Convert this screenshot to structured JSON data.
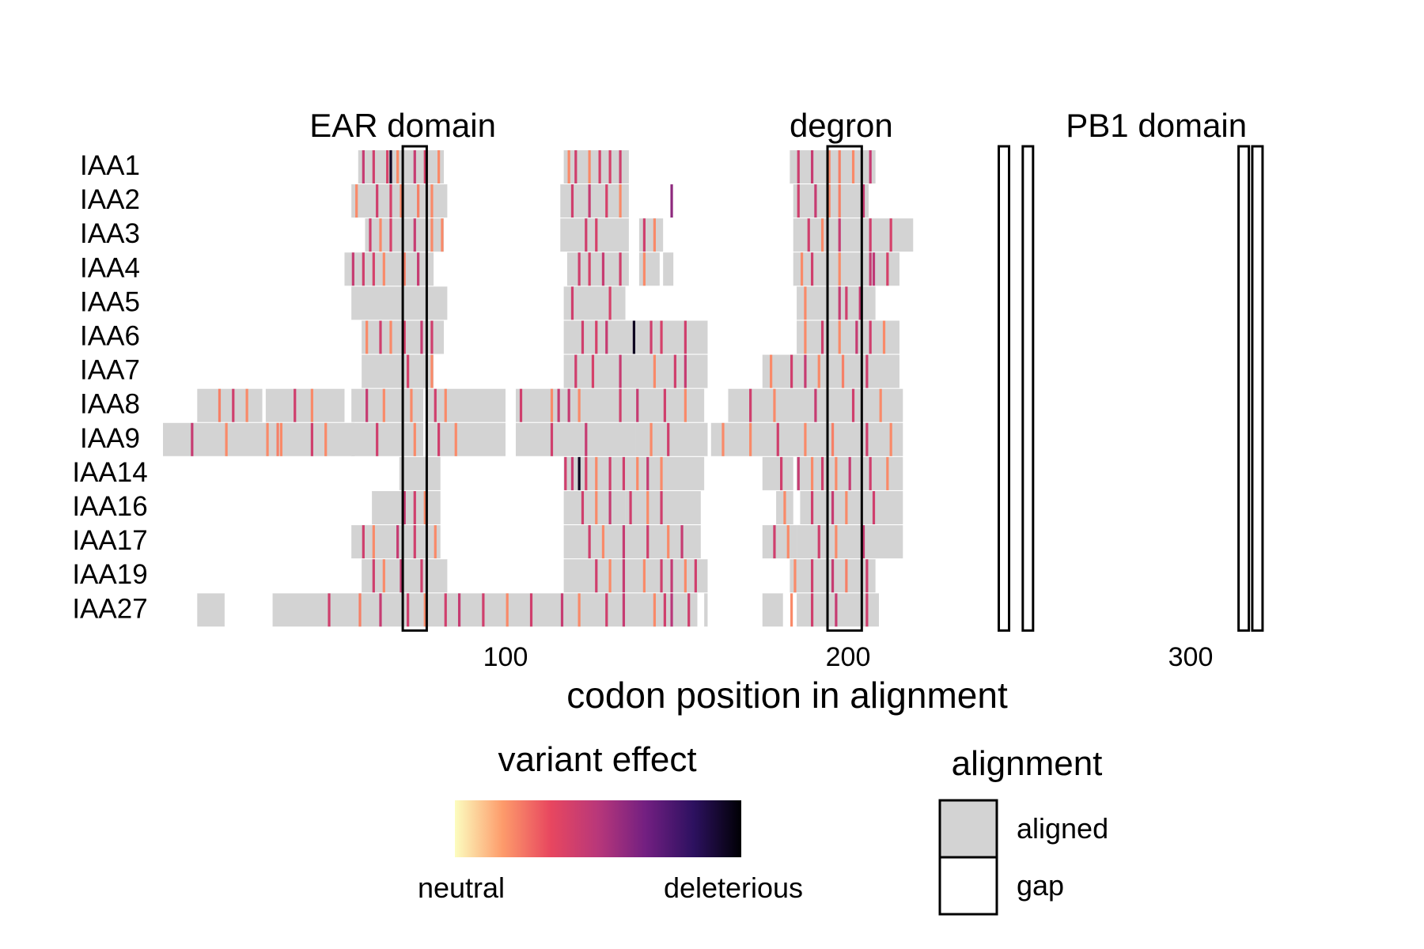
{
  "chart_data": {
    "type": "heatmap",
    "xlabel": "codon position in alignment",
    "ylabel": "",
    "xlim": [
      0,
      363
    ],
    "x_ticks": [
      100,
      200,
      300
    ],
    "rows": [
      "IAA1",
      "IAA2",
      "IAA3",
      "IAA4",
      "IAA5",
      "IAA6",
      "IAA7",
      "IAA8",
      "IAA9",
      "IAA14",
      "IAA16",
      "IAA17",
      "IAA19",
      "IAA27"
    ],
    "domains": [
      {
        "label": "EAR domain",
        "title_x": 70,
        "boxes": [
          [
            70,
            76
          ]
        ]
      },
      {
        "label": "degron",
        "title_x": 198,
        "boxes": [
          [
            194,
            203
          ]
        ]
      },
      {
        "label": "PB1 domain",
        "title_x": 290,
        "boxes": [
          [
            244,
            246
          ],
          [
            251,
            253
          ],
          [
            314,
            316
          ],
          [
            318,
            320
          ]
        ]
      }
    ],
    "aligned_segments": [
      [
        [
          57,
          81
        ],
        [
          117,
          135
        ],
        [
          183,
          207
        ]
      ],
      [
        [
          55,
          82
        ],
        [
          116,
          135
        ],
        [
          184,
          205
        ]
      ],
      [
        [
          59,
          81
        ],
        [
          116,
          135
        ],
        [
          139,
          145
        ],
        [
          184,
          218
        ]
      ],
      [
        [
          53,
          78
        ],
        [
          118,
          135
        ],
        [
          139,
          144
        ],
        [
          146,
          148
        ],
        [
          184,
          214
        ]
      ],
      [
        [
          55,
          82
        ],
        [
          117,
          134
        ],
        [
          185,
          207
        ]
      ],
      [
        [
          58,
          81
        ],
        [
          117,
          135
        ],
        [
          135,
          142
        ],
        [
          143,
          158
        ],
        [
          185,
          214
        ]
      ],
      [
        [
          58,
          78
        ],
        [
          117,
          134
        ],
        [
          134,
          158
        ],
        [
          175,
          214
        ]
      ],
      [
        [
          10,
          28
        ],
        [
          30,
          52
        ],
        [
          55,
          75
        ],
        [
          77,
          99
        ],
        [
          103,
          137
        ],
        [
          138,
          157
        ],
        [
          165,
          215
        ]
      ],
      [
        [
          0,
          55
        ],
        [
          55,
          75
        ],
        [
          77,
          99
        ],
        [
          103,
          137
        ],
        [
          138,
          158
        ],
        [
          160,
          215
        ]
      ],
      [
        [
          69,
          80
        ],
        [
          117,
          134
        ],
        [
          135,
          157
        ],
        [
          175,
          183
        ],
        [
          185,
          215
        ]
      ],
      [
        [
          61,
          80
        ],
        [
          117,
          134
        ],
        [
          135,
          156
        ],
        [
          179,
          183
        ],
        [
          186,
          215
        ]
      ],
      [
        [
          55,
          80
        ],
        [
          117,
          156
        ],
        [
          175,
          184
        ],
        [
          185,
          215
        ]
      ],
      [
        [
          58,
          82
        ],
        [
          117,
          158
        ],
        [
          183,
          207
        ]
      ],
      [
        [
          10,
          17
        ],
        [
          32,
          155
        ],
        [
          158,
          158
        ],
        [
          175,
          180
        ],
        [
          185,
          208
        ]
      ]
    ],
    "variants": [
      [
        [
          58,
          0.45
        ],
        [
          61,
          0.42
        ],
        [
          65,
          0.4
        ],
        [
          66,
          0.95
        ],
        [
          68,
          0.2
        ],
        [
          73,
          0.45
        ],
        [
          76,
          0.4
        ],
        [
          80,
          0.2
        ],
        [
          118,
          0.2
        ],
        [
          120,
          0.42
        ],
        [
          124,
          0.2
        ],
        [
          127,
          0.4
        ],
        [
          130,
          0.4
        ],
        [
          133,
          0.42
        ],
        [
          185,
          0.43
        ],
        [
          189,
          0.45
        ],
        [
          194,
          0.2
        ],
        [
          197,
          0.22
        ],
        [
          201,
          0.2
        ],
        [
          206,
          0.45
        ]
      ],
      [
        [
          56,
          0.2
        ],
        [
          62,
          0.42
        ],
        [
          66,
          0.4
        ],
        [
          69,
          0.2
        ],
        [
          74,
          0.22
        ],
        [
          78,
          0.2
        ],
        [
          119,
          0.42
        ],
        [
          124,
          0.45
        ],
        [
          129,
          0.4
        ],
        [
          133,
          0.2
        ],
        [
          148,
          0.6
        ],
        [
          185,
          0.42
        ],
        [
          190,
          0.45
        ],
        [
          194,
          0.2
        ],
        [
          197,
          0.22
        ],
        [
          204,
          0.45
        ]
      ],
      [
        [
          60,
          0.42
        ],
        [
          63,
          0.2
        ],
        [
          66,
          0.4
        ],
        [
          73,
          0.45
        ],
        [
          78,
          0.2
        ],
        [
          81,
          0.2
        ],
        [
          123,
          0.42
        ],
        [
          126,
          0.4
        ],
        [
          140,
          0.42
        ],
        [
          143,
          0.2
        ],
        [
          188,
          0.42
        ],
        [
          192,
          0.2
        ],
        [
          197,
          0.45
        ],
        [
          206,
          0.42
        ],
        [
          212,
          0.4
        ]
      ],
      [
        [
          55,
          0.45
        ],
        [
          58,
          0.42
        ],
        [
          61,
          0.4
        ],
        [
          64,
          0.2
        ],
        [
          70,
          0.22
        ],
        [
          74,
          0.45
        ],
        [
          121,
          0.42
        ],
        [
          124,
          0.4
        ],
        [
          128,
          0.45
        ],
        [
          133,
          0.42
        ],
        [
          140,
          0.2
        ],
        [
          186,
          0.2
        ],
        [
          189,
          0.42
        ],
        [
          197,
          0.2
        ],
        [
          206,
          0.45
        ],
        [
          207,
          0.48
        ],
        [
          211,
          0.4
        ]
      ],
      [
        [
          119,
          0.42
        ],
        [
          130,
          0.4
        ],
        [
          187,
          0.2
        ],
        [
          197,
          0.45
        ],
        [
          199,
          0.42
        ],
        [
          203,
          0.45
        ]
      ],
      [
        [
          59,
          0.2
        ],
        [
          63,
          0.42
        ],
        [
          66,
          0.2
        ],
        [
          70,
          0.4
        ],
        [
          75,
          0.45
        ],
        [
          78,
          0.42
        ],
        [
          122,
          0.42
        ],
        [
          126,
          0.4
        ],
        [
          129,
          0.45
        ],
        [
          137,
          0.95
        ],
        [
          142,
          0.42
        ],
        [
          145,
          0.4
        ],
        [
          152,
          0.42
        ],
        [
          187,
          0.2
        ],
        [
          192,
          0.42
        ],
        [
          197,
          0.2
        ],
        [
          202,
          0.45
        ],
        [
          206,
          0.42
        ],
        [
          210,
          0.2
        ]
      ],
      [
        [
          71,
          0.4
        ],
        [
          78,
          0.2
        ],
        [
          120,
          0.42
        ],
        [
          125,
          0.4
        ],
        [
          133,
          0.45
        ],
        [
          143,
          0.2
        ],
        [
          149,
          0.42
        ],
        [
          152,
          0.45
        ],
        [
          177,
          0.2
        ],
        [
          183,
          0.42
        ],
        [
          187,
          0.45
        ],
        [
          191,
          0.2
        ],
        [
          198,
          0.22
        ],
        [
          205,
          0.42
        ]
      ],
      [
        [
          16,
          0.22
        ],
        [
          20,
          0.42
        ],
        [
          24,
          0.2
        ],
        [
          38,
          0.42
        ],
        [
          43,
          0.2
        ],
        [
          59,
          0.45
        ],
        [
          64,
          0.2
        ],
        [
          72,
          0.2
        ],
        [
          79,
          0.42
        ],
        [
          82,
          0.2
        ],
        [
          104,
          0.42
        ],
        [
          113,
          0.2
        ],
        [
          115,
          0.45
        ],
        [
          118,
          0.45
        ],
        [
          121,
          0.2
        ],
        [
          133,
          0.42
        ],
        [
          138,
          0.45
        ],
        [
          146,
          0.42
        ],
        [
          152,
          0.2
        ],
        [
          171,
          0.42
        ],
        [
          178,
          0.2
        ],
        [
          190,
          0.45
        ],
        [
          201,
          0.42
        ],
        [
          209,
          0.2
        ]
      ],
      [
        [
          8,
          0.45
        ],
        [
          18,
          0.2
        ],
        [
          30,
          0.2
        ],
        [
          33,
          0.22
        ],
        [
          34,
          0.2
        ],
        [
          43,
          0.42
        ],
        [
          47,
          0.2
        ],
        [
          62,
          0.42
        ],
        [
          73,
          0.2
        ],
        [
          80,
          0.42
        ],
        [
          85,
          0.2
        ],
        [
          113,
          0.42
        ],
        [
          123,
          0.45
        ],
        [
          142,
          0.2
        ],
        [
          147,
          0.42
        ],
        [
          163,
          0.2
        ],
        [
          171,
          0.2
        ],
        [
          179,
          0.42
        ],
        [
          187,
          0.2
        ],
        [
          195,
          0.22
        ],
        [
          205,
          0.42
        ],
        [
          212,
          0.2
        ]
      ],
      [
        [
          117,
          0.42
        ],
        [
          119,
          0.45
        ],
        [
          121,
          0.95
        ],
        [
          123,
          0.4
        ],
        [
          126,
          0.2
        ],
        [
          130,
          0.42
        ],
        [
          134,
          0.42
        ],
        [
          138,
          0.2
        ],
        [
          141,
          0.45
        ],
        [
          145,
          0.2
        ],
        [
          180,
          0.42
        ],
        [
          185,
          0.45
        ],
        [
          189,
          0.2
        ],
        [
          192,
          0.42
        ],
        [
          196,
          0.2
        ],
        [
          200,
          0.45
        ],
        [
          206,
          0.42
        ],
        [
          211,
          0.2
        ]
      ],
      [
        [
          70,
          0.45
        ],
        [
          73,
          0.42
        ],
        [
          76,
          0.2
        ],
        [
          122,
          0.42
        ],
        [
          126,
          0.2
        ],
        [
          130,
          0.45
        ],
        [
          136,
          0.42
        ],
        [
          141,
          0.2
        ],
        [
          145,
          0.42
        ],
        [
          181,
          0.2
        ],
        [
          189,
          0.42
        ],
        [
          195,
          0.45
        ],
        [
          199,
          0.2
        ],
        [
          207,
          0.42
        ]
      ],
      [
        [
          58,
          0.42
        ],
        [
          61,
          0.2
        ],
        [
          68,
          0.45
        ],
        [
          73,
          0.42
        ],
        [
          79,
          0.2
        ],
        [
          124,
          0.42
        ],
        [
          128,
          0.2
        ],
        [
          134,
          0.45
        ],
        [
          141,
          0.42
        ],
        [
          147,
          0.2
        ],
        [
          151,
          0.45
        ],
        [
          178,
          0.42
        ],
        [
          182,
          0.2
        ],
        [
          191,
          0.42
        ],
        [
          196,
          0.2
        ],
        [
          204,
          0.45
        ]
      ],
      [
        [
          61,
          0.42
        ],
        [
          64,
          0.2
        ],
        [
          69,
          0.45
        ],
        [
          75,
          0.42
        ],
        [
          126,
          0.42
        ],
        [
          130,
          0.2
        ],
        [
          134,
          0.45
        ],
        [
          140,
          0.2
        ],
        [
          145,
          0.42
        ],
        [
          148,
          0.46
        ],
        [
          152,
          0.2
        ],
        [
          155,
          0.42
        ],
        [
          184,
          0.2
        ],
        [
          189,
          0.42
        ],
        [
          195,
          0.45
        ],
        [
          199,
          0.22
        ],
        [
          205,
          0.42
        ]
      ],
      [
        [
          48,
          0.42
        ],
        [
          57,
          0.22
        ],
        [
          63,
          0.45
        ],
        [
          71,
          0.42
        ],
        [
          76,
          0.2
        ],
        [
          82,
          0.42
        ],
        [
          86,
          0.45
        ],
        [
          93,
          0.42
        ],
        [
          100,
          0.2
        ],
        [
          107,
          0.42
        ],
        [
          116,
          0.45
        ],
        [
          121,
          0.2
        ],
        [
          129,
          0.42
        ],
        [
          134,
          0.45
        ],
        [
          143,
          0.2
        ],
        [
          146,
          0.42
        ],
        [
          148,
          0.5
        ],
        [
          153,
          0.42
        ],
        [
          183,
          0.2
        ],
        [
          189,
          0.42
        ],
        [
          196,
          0.45
        ],
        [
          205,
          0.42
        ]
      ]
    ],
    "colorbar": {
      "title": "variant effect",
      "low_label": "neutral",
      "high_label": "deleterious",
      "colors": [
        "#fcfdbf",
        "#fd9b6b",
        "#e8475f",
        "#b8377a",
        "#721f81",
        "#2d1160",
        "#000004"
      ]
    },
    "legend": {
      "title": "alignment",
      "items": [
        {
          "label": "aligned",
          "color": "#d3d3d3"
        },
        {
          "label": "gap",
          "color": "#ffffff"
        }
      ]
    },
    "grid": false
  }
}
